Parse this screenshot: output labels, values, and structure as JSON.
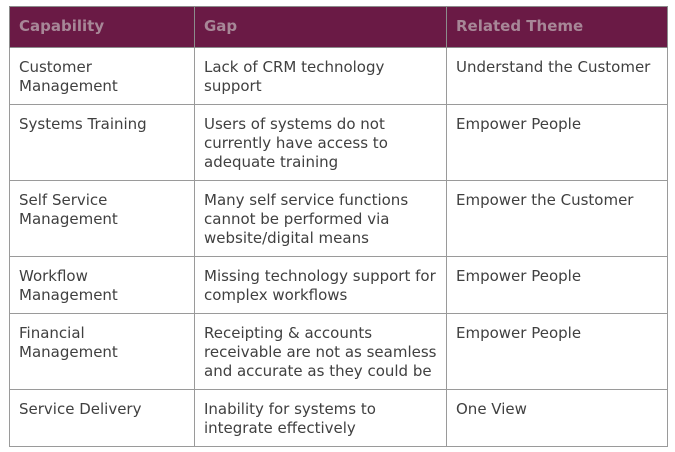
{
  "table": {
    "headers": [
      "Capability",
      "Gap",
      "Related Theme"
    ],
    "rows": [
      {
        "capability": "Customer Management",
        "gap": "Lack of CRM technology support",
        "theme": "Understand the Customer"
      },
      {
        "capability": "Systems Training",
        "gap": "Users of systems do not currently have access to adequate training",
        "theme": "Empower People"
      },
      {
        "capability": "Self Service Management",
        "gap": "Many self service functions cannot be performed via website/digital means",
        "theme": "Empower the Customer"
      },
      {
        "capability": "Workflow Management",
        "gap": "Missing technology support for complex workflows",
        "theme": "Empower People"
      },
      {
        "capability": "Financial Management",
        "gap": "Receipting & accounts receivable are not as seamless and accurate as they could be",
        "theme": "Empower People"
      },
      {
        "capability": "Service Delivery",
        "gap": "Inability for systems to integrate effectively",
        "theme": "One View"
      }
    ]
  },
  "colors": {
    "header_bg": "#6a1a45",
    "header_text": "#a78797",
    "body_text": "#404040",
    "border": "#9a9a9a"
  }
}
